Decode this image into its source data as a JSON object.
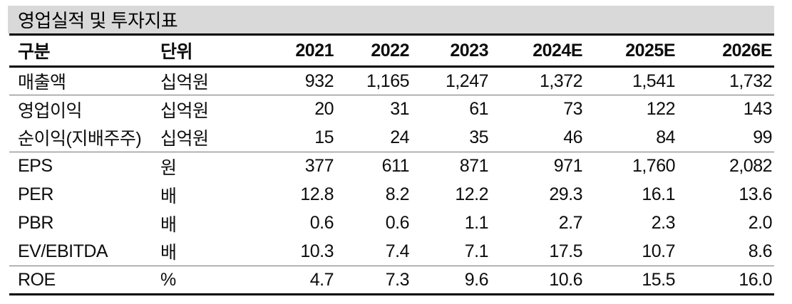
{
  "title": "영업실적 및 투자지표",
  "table": {
    "columns": [
      "구분",
      "단위",
      "2021",
      "2022",
      "2023",
      "2024E",
      "2025E",
      "2026E"
    ],
    "rows": [
      {
        "label": "매출액",
        "unit": "십억원",
        "values": [
          "932",
          "1,165",
          "1,247",
          "1,372",
          "1,541",
          "1,732"
        ],
        "section_end": true
      },
      {
        "label": "영업이익",
        "unit": "십억원",
        "values": [
          "20",
          "31",
          "61",
          "73",
          "122",
          "143"
        ],
        "section_end": false
      },
      {
        "label": "순이익(지배주주)",
        "unit": "십억원",
        "values": [
          "15",
          "24",
          "35",
          "46",
          "84",
          "99"
        ],
        "section_end": true
      },
      {
        "label": "EPS",
        "unit": "원",
        "values": [
          "377",
          "611",
          "871",
          "971",
          "1,760",
          "2,082"
        ],
        "section_end": false
      },
      {
        "label": "PER",
        "unit": "배",
        "values": [
          "12.8",
          "8.2",
          "12.2",
          "29.3",
          "16.1",
          "13.6"
        ],
        "section_end": false
      },
      {
        "label": "PBR",
        "unit": "배",
        "values": [
          "0.6",
          "0.6",
          "1.1",
          "2.7",
          "2.3",
          "2.0"
        ],
        "section_end": false
      },
      {
        "label": "EV/EBITDA",
        "unit": "배",
        "values": [
          "10.3",
          "7.4",
          "7.1",
          "17.5",
          "10.7",
          "8.6"
        ],
        "section_end": true
      },
      {
        "label": "ROE",
        "unit": "%",
        "values": [
          "4.7",
          "7.3",
          "9.6",
          "10.6",
          "15.5",
          "16.0"
        ],
        "section_end": false
      }
    ]
  },
  "colors": {
    "title_bg": "#d9d9d9",
    "heavy_line": "#000000",
    "light_line": "#737373",
    "text": "#0d0d0d"
  }
}
